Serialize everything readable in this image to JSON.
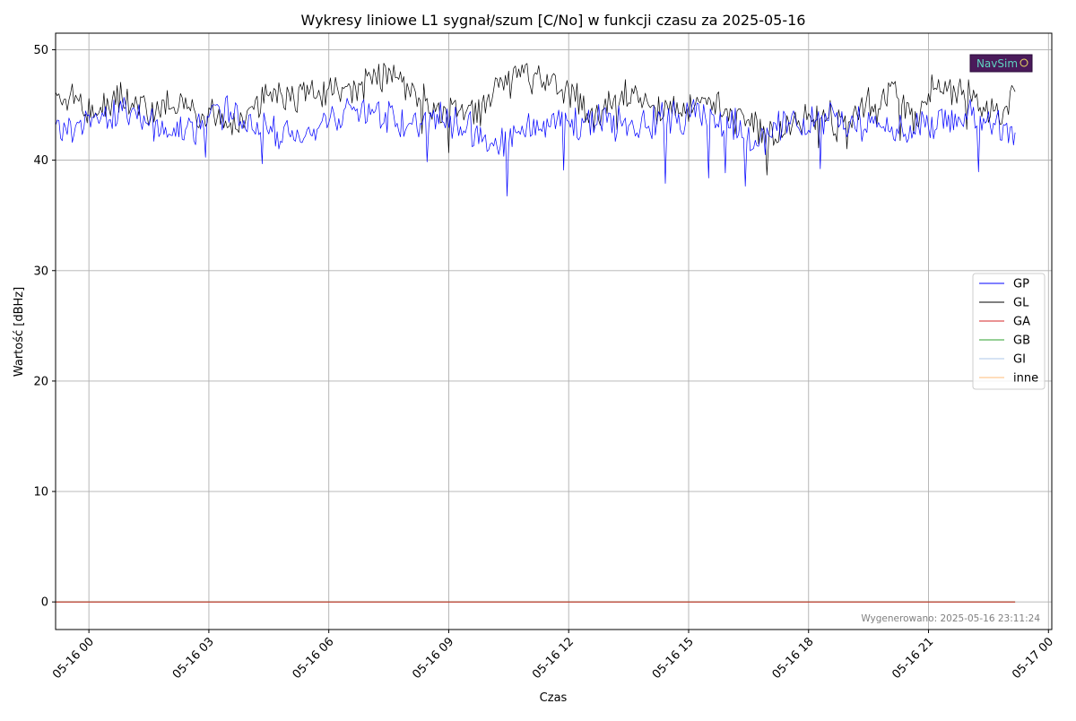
{
  "chart_data": {
    "type": "line",
    "title": "Wykresy liniowe L1 sygnał/szum [C/No] w funkcji czasu za 2025-05-16",
    "xlabel": "Czas",
    "ylabel": "Wartość [dBHz]",
    "x_range": [
      "2025-05-15T23:10",
      "2025-05-17T00:05"
    ],
    "ylim": [
      -2.5,
      51.5
    ],
    "grid": true,
    "legend_position": "center-right",
    "x_ticks": [
      {
        "value": "2025-05-16T00:00",
        "label": "05-16 00"
      },
      {
        "value": "2025-05-16T03:00",
        "label": "05-16 03"
      },
      {
        "value": "2025-05-16T06:00",
        "label": "05-16 06"
      },
      {
        "value": "2025-05-16T09:00",
        "label": "05-16 09"
      },
      {
        "value": "2025-05-16T12:00",
        "label": "05-16 12"
      },
      {
        "value": "2025-05-16T15:00",
        "label": "05-16 15"
      },
      {
        "value": "2025-05-16T18:00",
        "label": "05-16 18"
      },
      {
        "value": "2025-05-16T21:00",
        "label": "05-16 21"
      },
      {
        "value": "2025-05-17T00:00",
        "label": "05-17 00"
      }
    ],
    "y_ticks": [
      {
        "value": 0,
        "label": "0"
      },
      {
        "value": 10,
        "label": "10"
      },
      {
        "value": 20,
        "label": "20"
      },
      {
        "value": 30,
        "label": "30"
      },
      {
        "value": 40,
        "label": "40"
      },
      {
        "value": 50,
        "label": "50"
      }
    ],
    "series": [
      {
        "name": "GP",
        "color": "#0000ff",
        "x": [
          "2025-05-15T23:10",
          "2025-05-15T23:40",
          "2025-05-16T00:10",
          "2025-05-16T00:40",
          "2025-05-16T01:10",
          "2025-05-16T01:40",
          "2025-05-16T02:10",
          "2025-05-16T02:40",
          "2025-05-16T03:10",
          "2025-05-16T03:40",
          "2025-05-16T04:10",
          "2025-05-16T04:40",
          "2025-05-16T05:10",
          "2025-05-16T05:40",
          "2025-05-16T06:10",
          "2025-05-16T06:40",
          "2025-05-16T07:10",
          "2025-05-16T07:40",
          "2025-05-16T08:10",
          "2025-05-16T08:40",
          "2025-05-16T09:10",
          "2025-05-16T09:40",
          "2025-05-16T10:10",
          "2025-05-16T10:40",
          "2025-05-16T11:10",
          "2025-05-16T11:40",
          "2025-05-16T12:10",
          "2025-05-16T12:40",
          "2025-05-16T13:10",
          "2025-05-16T13:40",
          "2025-05-16T14:10",
          "2025-05-16T14:40",
          "2025-05-16T15:10",
          "2025-05-16T15:40",
          "2025-05-16T16:10",
          "2025-05-16T16:40",
          "2025-05-16T17:10",
          "2025-05-16T17:40",
          "2025-05-16T18:10",
          "2025-05-16T18:40",
          "2025-05-16T19:10",
          "2025-05-16T19:40",
          "2025-05-16T20:10",
          "2025-05-16T20:40",
          "2025-05-16T21:10",
          "2025-05-16T21:40",
          "2025-05-16T22:10",
          "2025-05-16T22:40",
          "2025-05-16T23:10"
        ],
        "values": [
          42.5,
          43.0,
          44.2,
          44.0,
          44.3,
          43.2,
          42.6,
          42.9,
          44.3,
          44.4,
          42.8,
          42.4,
          41.8,
          43.2,
          44.1,
          45.0,
          44.2,
          43.6,
          43.3,
          43.6,
          43.6,
          42.7,
          41.2,
          42.8,
          43.0,
          43.4,
          43.0,
          43.6,
          43.4,
          43.0,
          43.6,
          43.8,
          44.1,
          43.6,
          43.2,
          41.8,
          42.6,
          43.6,
          43.7,
          43.8,
          43.6,
          42.8,
          42.6,
          42.7,
          43.6,
          43.6,
          44.3,
          43.6,
          42.5
        ]
      },
      {
        "name": "GL",
        "color": "#000000",
        "x": [
          "2025-05-15T23:10",
          "2025-05-15T23:40",
          "2025-05-16T00:10",
          "2025-05-16T00:40",
          "2025-05-16T01:10",
          "2025-05-16T01:40",
          "2025-05-16T02:10",
          "2025-05-16T02:40",
          "2025-05-16T03:10",
          "2025-05-16T03:40",
          "2025-05-16T04:10",
          "2025-05-16T04:40",
          "2025-05-16T05:10",
          "2025-05-16T05:40",
          "2025-05-16T06:10",
          "2025-05-16T06:40",
          "2025-05-16T07:10",
          "2025-05-16T07:40",
          "2025-05-16T08:10",
          "2025-05-16T08:40",
          "2025-05-16T09:10",
          "2025-05-16T09:40",
          "2025-05-16T10:10",
          "2025-05-16T10:40",
          "2025-05-16T11:10",
          "2025-05-16T11:40",
          "2025-05-16T12:10",
          "2025-05-16T12:40",
          "2025-05-16T13:10",
          "2025-05-16T13:40",
          "2025-05-16T14:10",
          "2025-05-16T14:40",
          "2025-05-16T15:10",
          "2025-05-16T15:40",
          "2025-05-16T16:10",
          "2025-05-16T16:40",
          "2025-05-16T17:10",
          "2025-05-16T17:40",
          "2025-05-16T18:10",
          "2025-05-16T18:40",
          "2025-05-16T19:10",
          "2025-05-16T19:40",
          "2025-05-16T20:10",
          "2025-05-16T20:40",
          "2025-05-16T21:10",
          "2025-05-16T21:40",
          "2025-05-16T22:10",
          "2025-05-16T22:40",
          "2025-05-16T23:10"
        ],
        "values": [
          46.0,
          45.6,
          44.2,
          45.6,
          45.2,
          44.6,
          45.4,
          44.2,
          44.4,
          43.2,
          45.0,
          46.0,
          46.2,
          45.8,
          46.8,
          46.6,
          47.4,
          48.0,
          46.0,
          44.8,
          44.6,
          43.8,
          46.6,
          47.2,
          47.6,
          47.0,
          45.6,
          44.0,
          45.8,
          46.2,
          44.6,
          44.6,
          45.0,
          44.6,
          44.0,
          43.4,
          42.0,
          43.6,
          44.4,
          43.8,
          44.2,
          45.8,
          46.2,
          44.0,
          46.6,
          46.2,
          45.4,
          44.4,
          46.2
        ]
      },
      {
        "name": "GA",
        "color": "#d62728",
        "x": [
          "2025-05-15T23:10",
          "2025-05-16T23:10"
        ],
        "values": [
          0,
          0
        ]
      },
      {
        "name": "GB",
        "color": "#2ca02c",
        "x": [
          "2025-05-15T23:10",
          "2025-05-16T23:10"
        ],
        "values": [
          0,
          0
        ]
      },
      {
        "name": "GI",
        "color": "#aec7e8",
        "x": [
          "2025-05-15T23:10",
          "2025-05-16T23:10"
        ],
        "values": [
          0,
          0
        ]
      },
      {
        "name": "inne",
        "color": "#ffbb78",
        "x": [
          "2025-05-15T23:10",
          "2025-05-16T23:10"
        ],
        "values": [
          0,
          0
        ]
      }
    ],
    "annotation": "Wygenerowano: 2025-05-16 23:11:24",
    "logo_text": "NavSim"
  }
}
